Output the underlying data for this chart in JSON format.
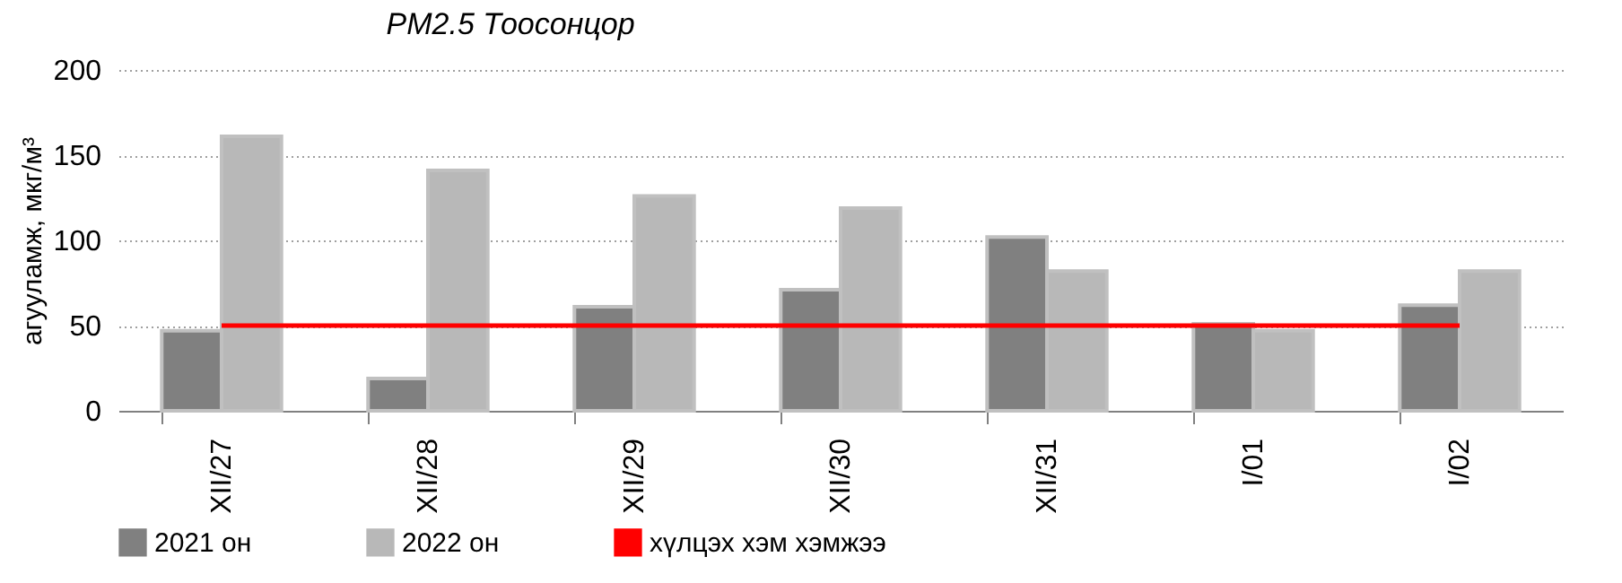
{
  "chart_data": {
    "type": "bar",
    "title": "PM2.5 Тоосонцор",
    "ylabel": "агууламж, мкг/м³",
    "categories": [
      "XII/27",
      "XII/28",
      "XII/29",
      "XII/30",
      "XII/31",
      "I/01",
      "I/02"
    ],
    "series": [
      {
        "name": "2021 он",
        "color": "#808080",
        "values": [
          47,
          19,
          61,
          71,
          102,
          51,
          62
        ]
      },
      {
        "name": "2022 он",
        "color": "#b8b8b8",
        "values": [
          161,
          141,
          126,
          119,
          82,
          47,
          82
        ]
      },
      {
        "name": "хүлцэх хэм хэмжээ",
        "type": "line",
        "color": "#ff0000",
        "values": [
          50,
          50,
          50,
          50,
          50,
          50,
          50
        ]
      }
    ],
    "ylim": [
      0,
      200
    ],
    "yticks": [
      0,
      50,
      100,
      150,
      200
    ],
    "grid": "y",
    "legend": "bottom"
  }
}
